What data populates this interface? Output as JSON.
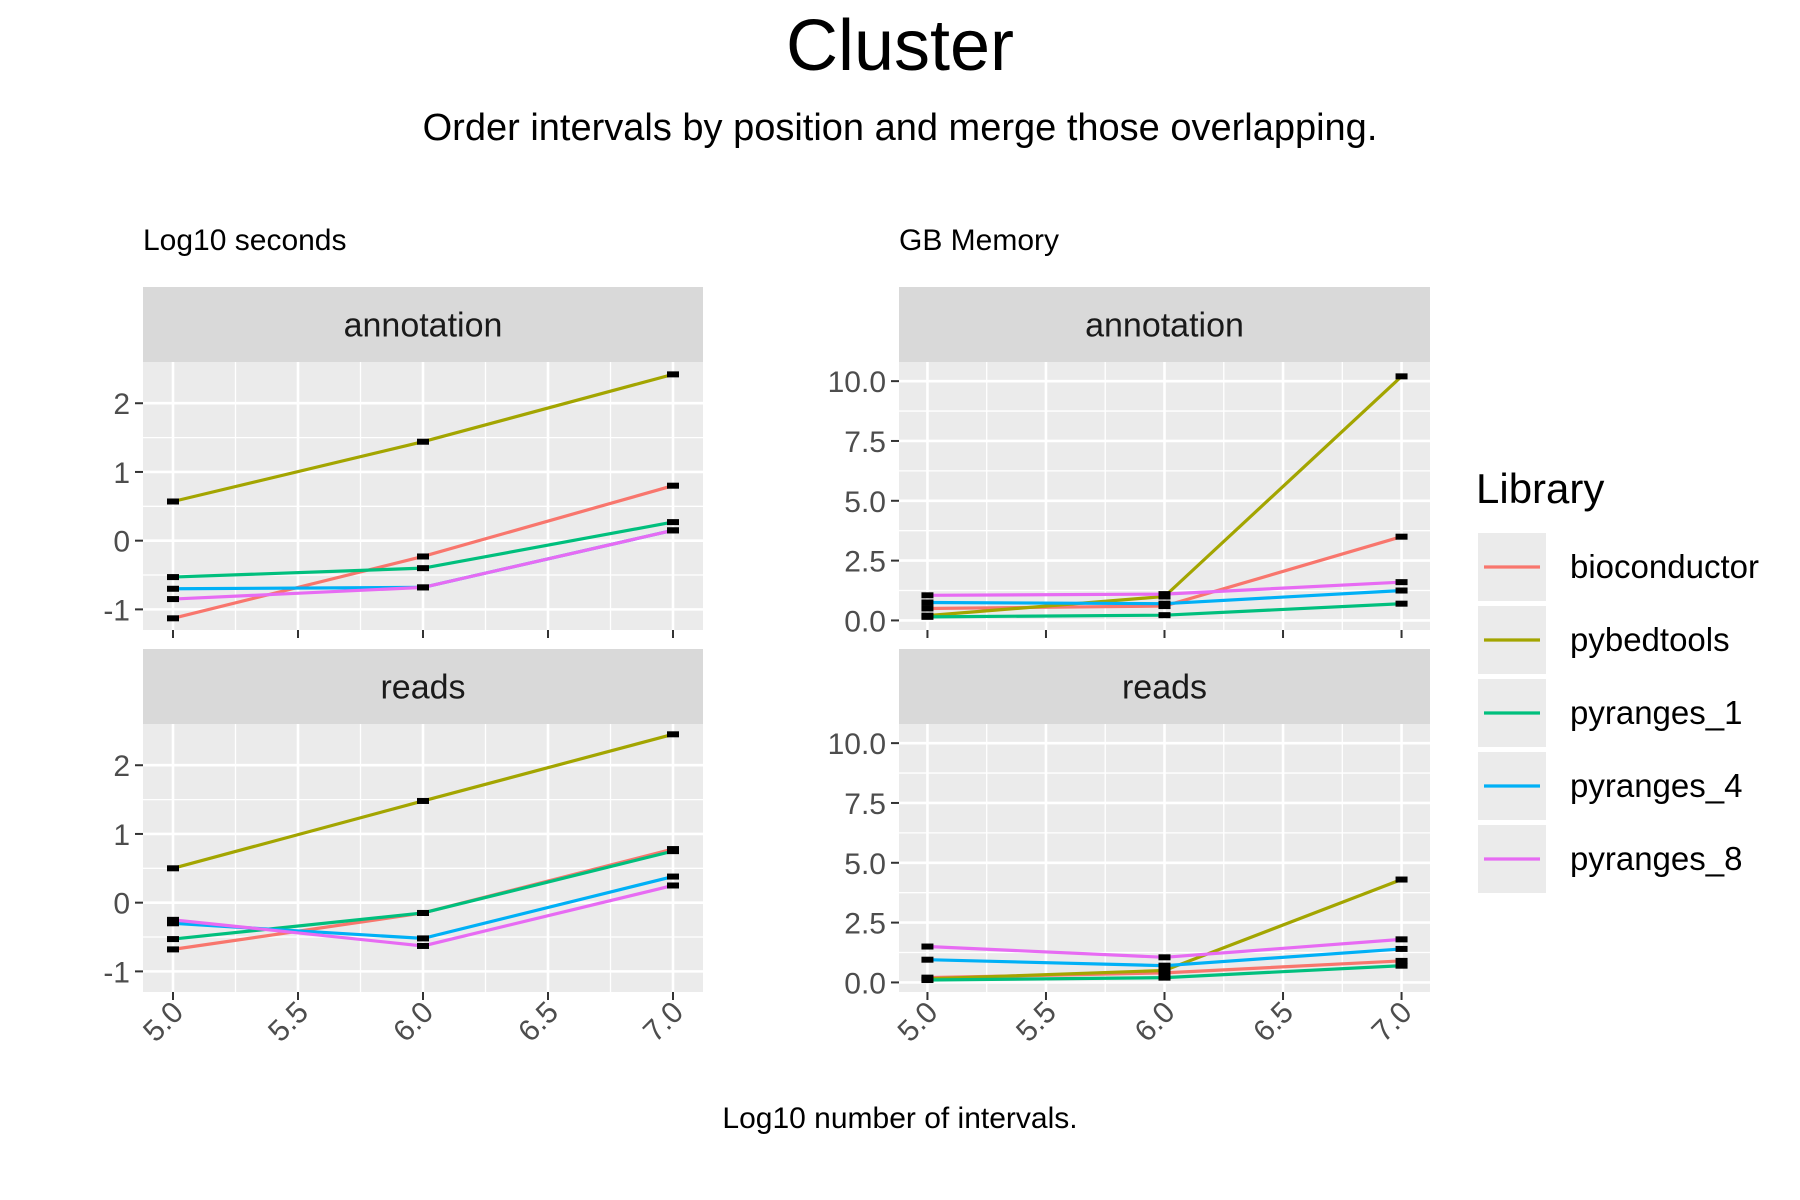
{
  "title": "Cluster",
  "subtitle": "Order intervals by position and merge those overlapping.",
  "xlabel": "Log10 number of intervals.",
  "legend": {
    "title": "Library",
    "entries": [
      {
        "name": "bioconductor",
        "color": "#F8766D"
      },
      {
        "name": "pybedtools",
        "color": "#A3A500"
      },
      {
        "name": "pyranges_1",
        "color": "#00BF7D"
      },
      {
        "name": "pyranges_4",
        "color": "#00B0F6"
      },
      {
        "name": "pyranges_8",
        "color": "#E76BF3"
      }
    ]
  },
  "colors": {
    "panel_background": "#EBEBEB",
    "strip_background": "#D9D9D9",
    "grid": "#FFFFFF",
    "tick_text": "#4D4D4D",
    "error_bar": "#000000"
  },
  "chart_data": [
    {
      "type": "line",
      "panel_label": "Log10 seconds",
      "facet": "annotation",
      "x": [
        5.0,
        6.0,
        7.0
      ],
      "xlim": [
        4.88,
        7.12
      ],
      "ylim": [
        -1.3,
        2.6
      ],
      "xticks": [
        "5.0",
        "5.5",
        "6.0",
        "6.5",
        "7.0"
      ],
      "yticks": [
        "-1",
        "0",
        "1",
        "2"
      ],
      "series": [
        {
          "name": "bioconductor",
          "values": [
            -1.13,
            -0.23,
            0.8
          ]
        },
        {
          "name": "pybedtools",
          "values": [
            0.57,
            1.44,
            2.42
          ]
        },
        {
          "name": "pyranges_1",
          "values": [
            -0.53,
            -0.4,
            0.27
          ]
        },
        {
          "name": "pyranges_4",
          "values": [
            -0.7,
            -0.68,
            0.15
          ]
        },
        {
          "name": "pyranges_8",
          "values": [
            -0.85,
            -0.68,
            0.15
          ]
        }
      ]
    },
    {
      "type": "line",
      "panel_label": "Log10 seconds",
      "facet": "reads",
      "x": [
        5.0,
        6.0,
        7.0
      ],
      "xlim": [
        4.88,
        7.12
      ],
      "ylim": [
        -1.3,
        2.6
      ],
      "xticks": [
        "5.0",
        "5.5",
        "6.0",
        "6.5",
        "7.0"
      ],
      "yticks": [
        "-1",
        "0",
        "1",
        "2"
      ],
      "series": [
        {
          "name": "bioconductor",
          "values": [
            -0.68,
            -0.15,
            0.78
          ]
        },
        {
          "name": "pybedtools",
          "values": [
            0.5,
            1.48,
            2.45
          ]
        },
        {
          "name": "pyranges_1",
          "values": [
            -0.53,
            -0.15,
            0.75
          ]
        },
        {
          "name": "pyranges_4",
          "values": [
            -0.3,
            -0.52,
            0.38
          ]
        },
        {
          "name": "pyranges_8",
          "values": [
            -0.25,
            -0.63,
            0.25
          ]
        }
      ]
    },
    {
      "type": "line",
      "panel_label": "GB Memory",
      "facet": "annotation",
      "x": [
        5.0,
        6.0,
        7.0
      ],
      "xlim": [
        4.88,
        7.12
      ],
      "ylim": [
        -0.4,
        10.8
      ],
      "xticks": [
        "5.0",
        "5.5",
        "6.0",
        "6.5",
        "7.0"
      ],
      "yticks": [
        "0.0",
        "2.5",
        "5.0",
        "7.5",
        "10.0"
      ],
      "series": [
        {
          "name": "bioconductor",
          "values": [
            0.5,
            0.6,
            3.5
          ]
        },
        {
          "name": "pybedtools",
          "values": [
            0.2,
            1.0,
            10.2
          ]
        },
        {
          "name": "pyranges_1",
          "values": [
            0.15,
            0.22,
            0.7
          ]
        },
        {
          "name": "pyranges_4",
          "values": [
            0.75,
            0.7,
            1.25
          ]
        },
        {
          "name": "pyranges_8",
          "values": [
            1.05,
            1.1,
            1.6
          ]
        }
      ]
    },
    {
      "type": "line",
      "panel_label": "GB Memory",
      "facet": "reads",
      "x": [
        5.0,
        6.0,
        7.0
      ],
      "xlim": [
        4.88,
        7.12
      ],
      "ylim": [
        -0.4,
        10.8
      ],
      "xticks": [
        "5.0",
        "5.5",
        "6.0",
        "6.5",
        "7.0"
      ],
      "yticks": [
        "0.0",
        "2.5",
        "5.0",
        "7.5",
        "10.0"
      ],
      "series": [
        {
          "name": "bioconductor",
          "values": [
            0.2,
            0.4,
            0.9
          ]
        },
        {
          "name": "pybedtools",
          "values": [
            0.15,
            0.5,
            4.3
          ]
        },
        {
          "name": "pyranges_1",
          "values": [
            0.1,
            0.2,
            0.7
          ]
        },
        {
          "name": "pyranges_4",
          "values": [
            0.95,
            0.7,
            1.4
          ]
        },
        {
          "name": "pyranges_8",
          "values": [
            1.5,
            1.05,
            1.8
          ]
        }
      ]
    }
  ]
}
